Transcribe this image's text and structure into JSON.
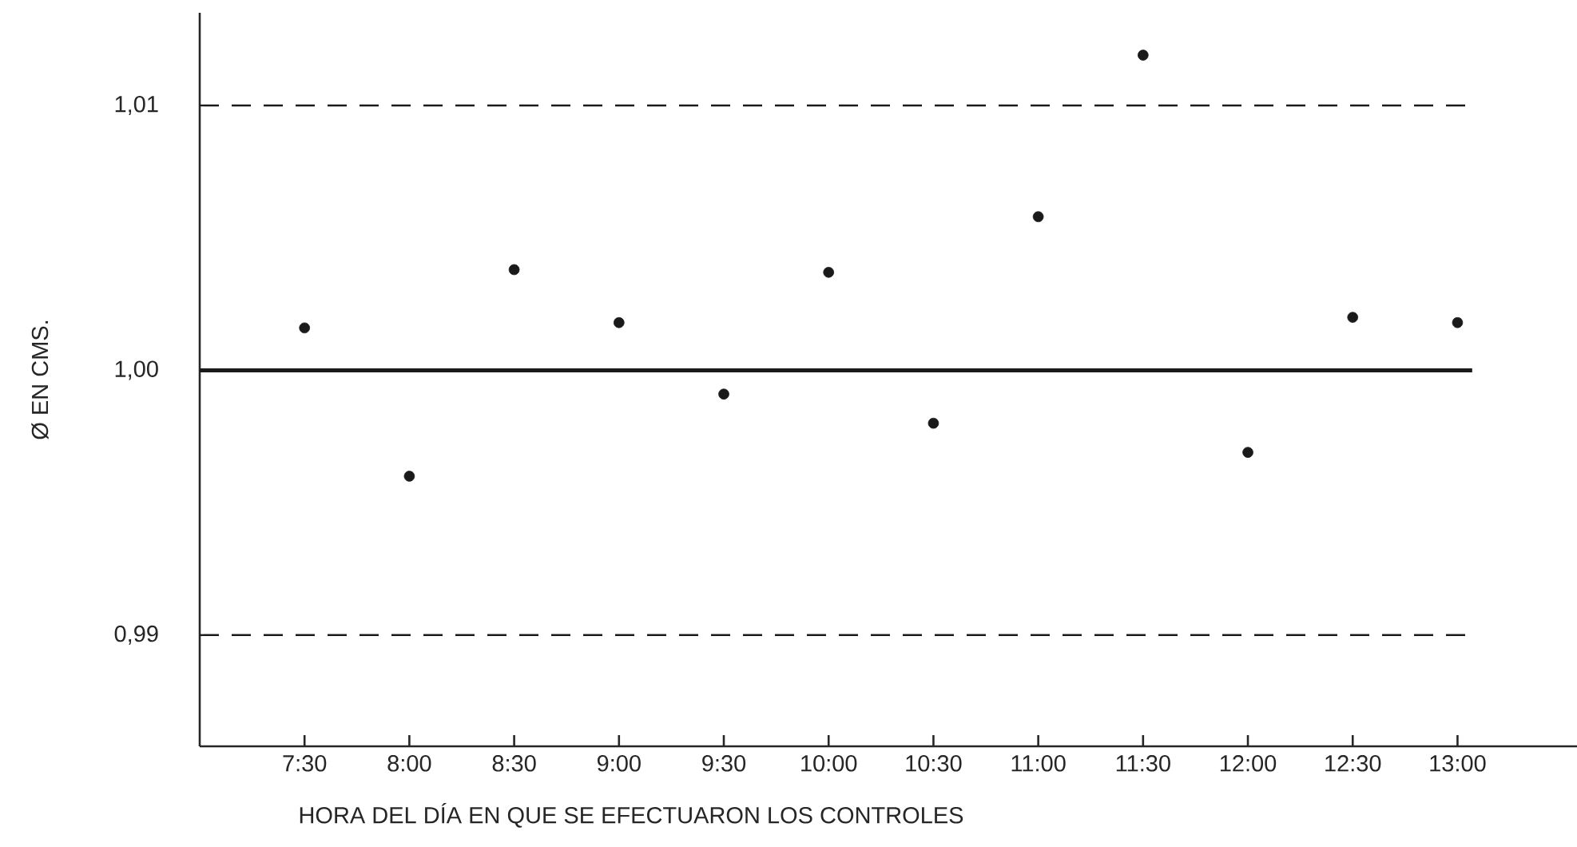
{
  "chart_data": {
    "type": "scatter",
    "xlabel": "HORA DEL DÍA EN QUE SE EFECTUARON LOS CONTROLES",
    "ylabel": "Ø EN CMS.",
    "x": [
      7.5,
      8.0,
      8.5,
      9.0,
      9.5,
      10.0,
      10.5,
      11.0,
      11.5,
      12.0,
      12.5,
      13.0
    ],
    "values": [
      1.0016,
      0.996,
      1.0038,
      1.0018,
      0.9991,
      1.0037,
      0.998,
      1.0058,
      1.0119,
      0.9969,
      1.002,
      1.0018
    ],
    "color": "#1a1a1a",
    "marker": "circle",
    "xlim": [
      7.0,
      13.57
    ],
    "ylim": [
      0.9858,
      1.0135
    ],
    "xticks": [
      {
        "value": 7.5,
        "label": "7:30"
      },
      {
        "value": 8.0,
        "label": "8:00"
      },
      {
        "value": 8.5,
        "label": "8:30"
      },
      {
        "value": 9.0,
        "label": "9:00"
      },
      {
        "value": 9.5,
        "label": "9:30"
      },
      {
        "value": 10.0,
        "label": "10:00"
      },
      {
        "value": 10.5,
        "label": "10:30"
      },
      {
        "value": 11.0,
        "label": "11:00"
      },
      {
        "value": 11.5,
        "label": "11:30"
      },
      {
        "value": 12.0,
        "label": "12:00"
      },
      {
        "value": 12.5,
        "label": "12:30"
      },
      {
        "value": 13.0,
        "label": "13:00"
      }
    ],
    "yticks": [
      {
        "value": 0.99,
        "label": "0,99"
      },
      {
        "value": 1.0,
        "label": "1,00"
      },
      {
        "value": 1.01,
        "label": "1,01"
      }
    ],
    "ref_lines": [
      {
        "axis": "y",
        "value": 1.01,
        "color": "#1a1a1a",
        "line_style": "dashed"
      },
      {
        "axis": "y",
        "value": 1.0,
        "color": "#1a1a1a",
        "line_style": "solid"
      },
      {
        "axis": "y",
        "value": 0.99,
        "color": "#1a1a1a",
        "line_style": "dashed"
      }
    ],
    "grid": false
  }
}
